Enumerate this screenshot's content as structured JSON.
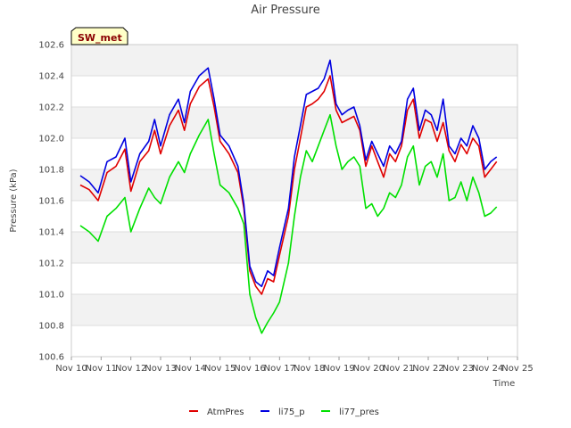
{
  "chart_data": {
    "type": "line",
    "title": "Air Pressure",
    "site_label": "SW_met",
    "xlabel": "Time",
    "ylabel": "Pressure (kPa)",
    "xlim": [
      10,
      25
    ],
    "ylim": [
      100.6,
      102.6
    ],
    "x_ticks": [
      10,
      11,
      12,
      13,
      14,
      15,
      16,
      17,
      18,
      19,
      20,
      21,
      22,
      23,
      24,
      25
    ],
    "x_tick_labels": [
      "Nov 10",
      "Nov 11",
      "Nov 12",
      "Nov 13",
      "Nov 14",
      "Nov 15",
      "Nov 16",
      "Nov 17",
      "Nov 18",
      "Nov 19",
      "Nov 20",
      "Nov 21",
      "Nov 22",
      "Nov 23",
      "Nov 24",
      "Nov 25"
    ],
    "y_ticks": [
      100.6,
      100.8,
      101.0,
      101.2,
      101.4,
      101.6,
      101.8,
      102.0,
      102.2,
      102.4,
      102.6
    ],
    "y_tick_labels": [
      "100.6",
      "100.8",
      "101.0",
      "101.2",
      "101.4",
      "101.6",
      "101.8",
      "102.0",
      "102.2",
      "102.4",
      "102.6"
    ],
    "legend_position": "bottom",
    "x": [
      10.3,
      10.6,
      10.9,
      11.2,
      11.5,
      11.8,
      12.0,
      12.3,
      12.6,
      12.8,
      13.0,
      13.3,
      13.6,
      13.8,
      14.0,
      14.3,
      14.6,
      14.8,
      15.0,
      15.3,
      15.6,
      15.8,
      16.0,
      16.2,
      16.4,
      16.6,
      16.8,
      17.0,
      17.3,
      17.5,
      17.7,
      17.9,
      18.1,
      18.3,
      18.5,
      18.7,
      18.9,
      19.1,
      19.3,
      19.5,
      19.7,
      19.9,
      20.1,
      20.3,
      20.5,
      20.7,
      20.9,
      21.1,
      21.3,
      21.5,
      21.7,
      21.9,
      22.1,
      22.3,
      22.5,
      22.7,
      22.9,
      23.1,
      23.3,
      23.5,
      23.7,
      23.9,
      24.1,
      24.3
    ],
    "series": [
      {
        "name": "AtmPres",
        "color": "#e00000",
        "values": [
          101.7,
          101.67,
          101.6,
          101.78,
          101.82,
          101.93,
          101.66,
          101.85,
          101.92,
          102.05,
          101.9,
          102.08,
          102.18,
          102.05,
          102.22,
          102.33,
          102.38,
          102.2,
          101.98,
          101.9,
          101.78,
          101.55,
          101.15,
          101.05,
          101.0,
          101.1,
          101.08,
          101.25,
          101.5,
          101.8,
          102.0,
          102.2,
          102.22,
          102.25,
          102.3,
          102.4,
          102.18,
          102.1,
          102.12,
          102.14,
          102.05,
          101.82,
          101.95,
          101.85,
          101.75,
          101.9,
          101.85,
          101.95,
          102.18,
          102.25,
          102.0,
          102.12,
          102.1,
          101.98,
          102.1,
          101.92,
          101.85,
          101.96,
          101.9,
          102.0,
          101.95,
          101.75,
          101.8,
          101.85
        ]
      },
      {
        "name": "li75_p",
        "color": "#0000e0",
        "values": [
          101.76,
          101.72,
          101.65,
          101.85,
          101.88,
          102.0,
          101.72,
          101.9,
          101.98,
          102.12,
          101.95,
          102.15,
          102.25,
          102.1,
          102.3,
          102.4,
          102.45,
          102.25,
          102.02,
          101.95,
          101.82,
          101.58,
          101.18,
          101.08,
          101.05,
          101.15,
          101.12,
          101.3,
          101.55,
          101.88,
          102.08,
          102.28,
          102.3,
          102.32,
          102.38,
          102.5,
          102.22,
          102.15,
          102.18,
          102.2,
          102.08,
          101.86,
          101.98,
          101.9,
          101.82,
          101.95,
          101.9,
          101.98,
          102.25,
          102.32,
          102.05,
          102.18,
          102.15,
          102.05,
          102.25,
          101.95,
          101.9,
          102.0,
          101.95,
          102.08,
          102.0,
          101.8,
          101.85,
          101.88
        ]
      },
      {
        "name": "li77_pres",
        "color": "#00e000",
        "values": [
          101.44,
          101.4,
          101.34,
          101.5,
          101.55,
          101.62,
          101.4,
          101.55,
          101.68,
          101.62,
          101.58,
          101.75,
          101.85,
          101.78,
          101.9,
          102.02,
          102.12,
          101.9,
          101.7,
          101.65,
          101.55,
          101.45,
          101.0,
          100.85,
          100.75,
          100.82,
          100.88,
          100.95,
          101.2,
          101.5,
          101.75,
          101.92,
          101.85,
          101.95,
          102.05,
          102.15,
          101.95,
          101.8,
          101.85,
          101.88,
          101.82,
          101.55,
          101.58,
          101.5,
          101.55,
          101.65,
          101.62,
          101.7,
          101.88,
          101.95,
          101.7,
          101.82,
          101.85,
          101.75,
          101.9,
          101.6,
          101.62,
          101.72,
          101.6,
          101.75,
          101.65,
          101.5,
          101.52,
          101.56
        ]
      }
    ]
  }
}
